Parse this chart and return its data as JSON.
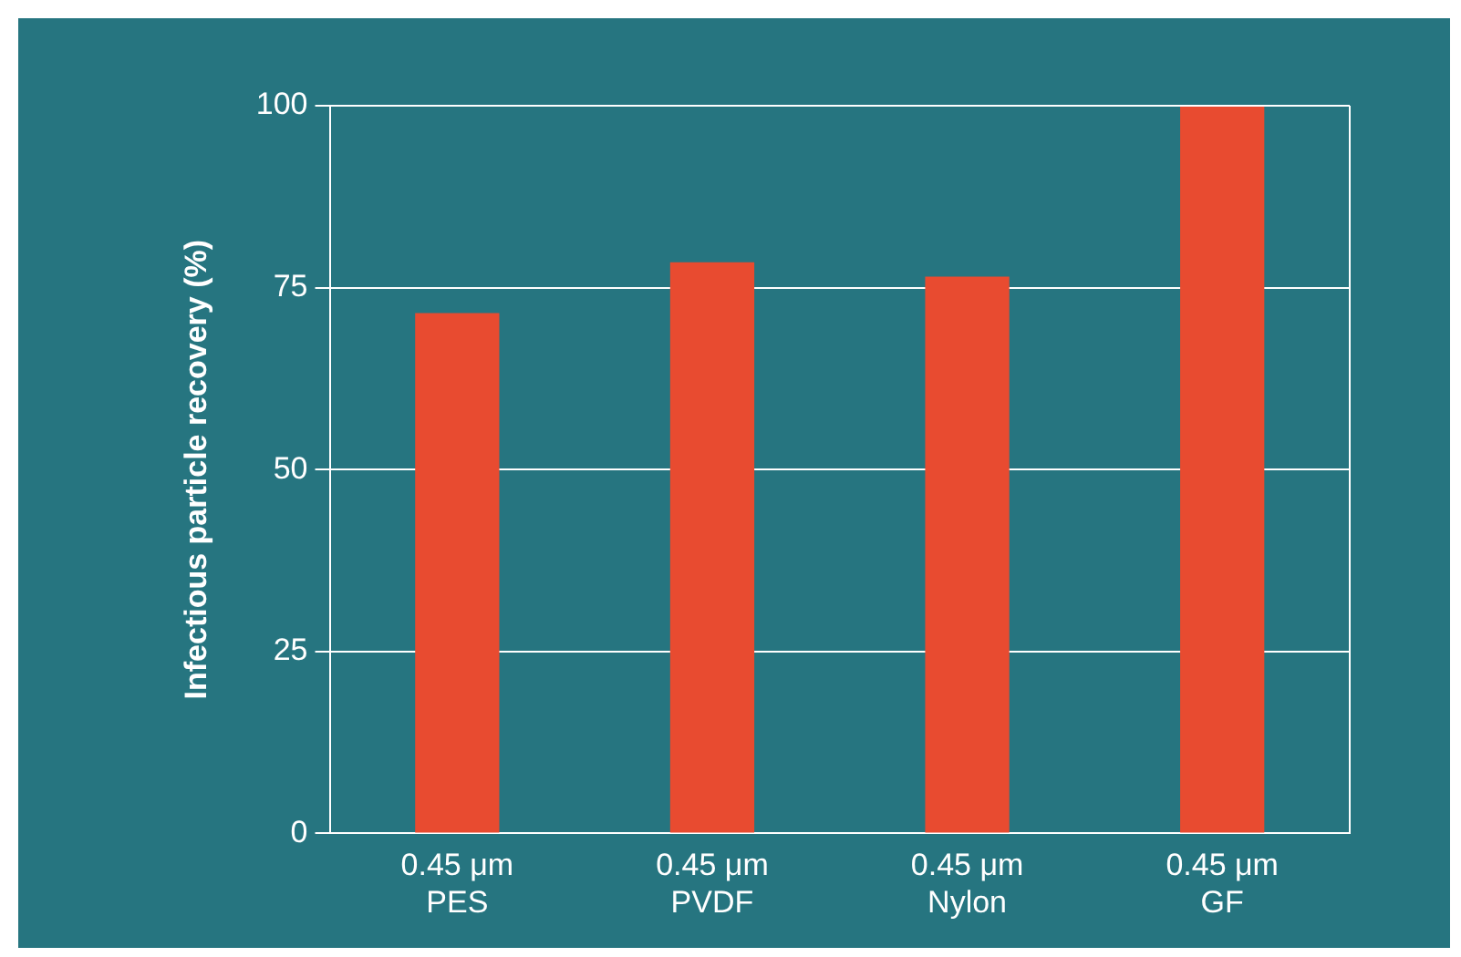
{
  "chart_data": {
    "type": "bar",
    "ylabel": "Infectious particle recovery (%)",
    "categories": [
      "0.45 μm\nPES",
      "0.45 μm\nPVDF",
      "0.45 μm\nNylon",
      "0.45 μm\nGF"
    ],
    "values": [
      71.5,
      78.5,
      76.5,
      100
    ],
    "color": "#e84b30",
    "ylim": [
      0,
      100
    ],
    "yticks": [
      0,
      25,
      50,
      75,
      100
    ],
    "grid": "y",
    "legend": false
  }
}
